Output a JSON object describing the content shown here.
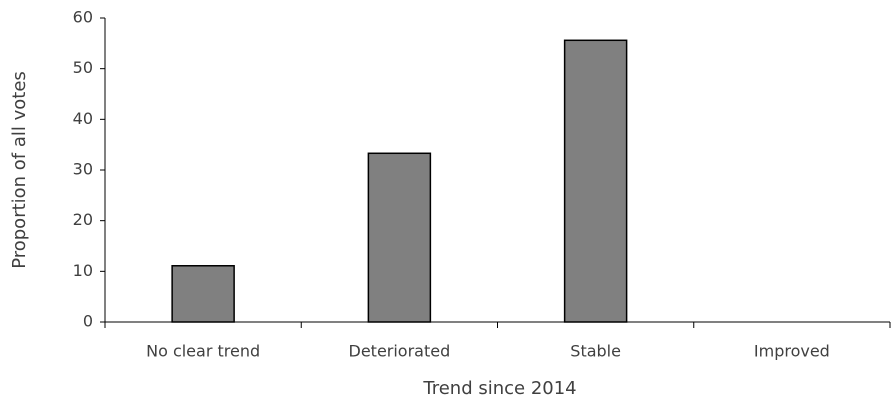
{
  "chart_data": {
    "type": "bar",
    "x_label": "Trend since 2014",
    "y_label": "Proportion of all votes",
    "categories": [
      "No clear trend",
      "Deteriorated",
      "Stable",
      "Improved"
    ],
    "values": [
      11.1,
      33.3,
      55.6,
      0
    ],
    "color": "#808080",
    "ylim": [
      0,
      60
    ],
    "yticks": [
      0,
      10,
      20,
      30,
      40,
      50,
      60
    ],
    "grid": false
  }
}
